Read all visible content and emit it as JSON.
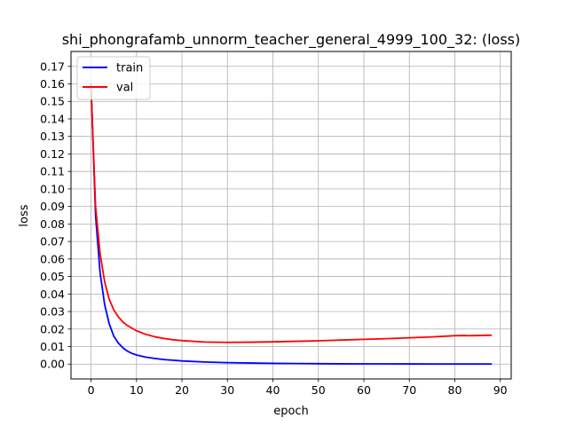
{
  "chart_data": {
    "type": "line",
    "title": "shi_phongrafamb_unnorm_teacher_general_4999_100_32: (loss)",
    "xlabel": "epoch",
    "ylabel": "loss",
    "xlim": [
      -4.4,
      92.4
    ],
    "ylim": [
      -0.0085,
      0.1785
    ],
    "xticks": [
      0,
      10,
      20,
      30,
      40,
      50,
      60,
      70,
      80,
      90
    ],
    "yticks": [
      0.0,
      0.01,
      0.02,
      0.03,
      0.04,
      0.05,
      0.06,
      0.07,
      0.08,
      0.09,
      0.1,
      0.11,
      0.12,
      0.13,
      0.14,
      0.15,
      0.16,
      0.17
    ],
    "ytick_labels": [
      "0.00",
      "0.01",
      "0.02",
      "0.03",
      "0.04",
      "0.05",
      "0.06",
      "0.07",
      "0.08",
      "0.09",
      "0.10",
      "0.11",
      "0.12",
      "0.13",
      "0.14",
      "0.15",
      "0.16",
      "0.17"
    ],
    "grid": true,
    "legend_position": "top-left",
    "series": [
      {
        "name": "train",
        "color": "#0000ff",
        "x": [
          0,
          1,
          2,
          3,
          4,
          5,
          6,
          7,
          8,
          9,
          10,
          12,
          14,
          16,
          18,
          20,
          25,
          30,
          35,
          40,
          45,
          50,
          55,
          60,
          65,
          70,
          75,
          80,
          85,
          88
        ],
        "y": [
          0.16,
          0.085,
          0.052,
          0.034,
          0.023,
          0.016,
          0.012,
          0.0093,
          0.0074,
          0.0061,
          0.0052,
          0.004,
          0.0032,
          0.0026,
          0.0022,
          0.0018,
          0.0012,
          0.0008,
          0.0006,
          0.0004,
          0.0003,
          0.0002,
          0.00015,
          0.0001,
          0.0001,
          8e-05,
          6e-05,
          5e-05,
          4e-05,
          4e-05
        ]
      },
      {
        "name": "val",
        "color": "#ff0000",
        "x": [
          0,
          1,
          2,
          3,
          4,
          5,
          6,
          7,
          8,
          9,
          10,
          12,
          14,
          16,
          18,
          20,
          25,
          30,
          35,
          40,
          45,
          50,
          55,
          60,
          65,
          70,
          75,
          80,
          82,
          83,
          85,
          88
        ],
        "y": [
          0.158,
          0.09,
          0.063,
          0.047,
          0.037,
          0.031,
          0.027,
          0.024,
          0.022,
          0.0205,
          0.019,
          0.017,
          0.0156,
          0.0146,
          0.0139,
          0.0134,
          0.0126,
          0.0124,
          0.0125,
          0.0127,
          0.013,
          0.0133,
          0.0137,
          0.0141,
          0.0145,
          0.015,
          0.0155,
          0.0162,
          0.0163,
          0.0162,
          0.0163,
          0.0165
        ]
      }
    ]
  }
}
